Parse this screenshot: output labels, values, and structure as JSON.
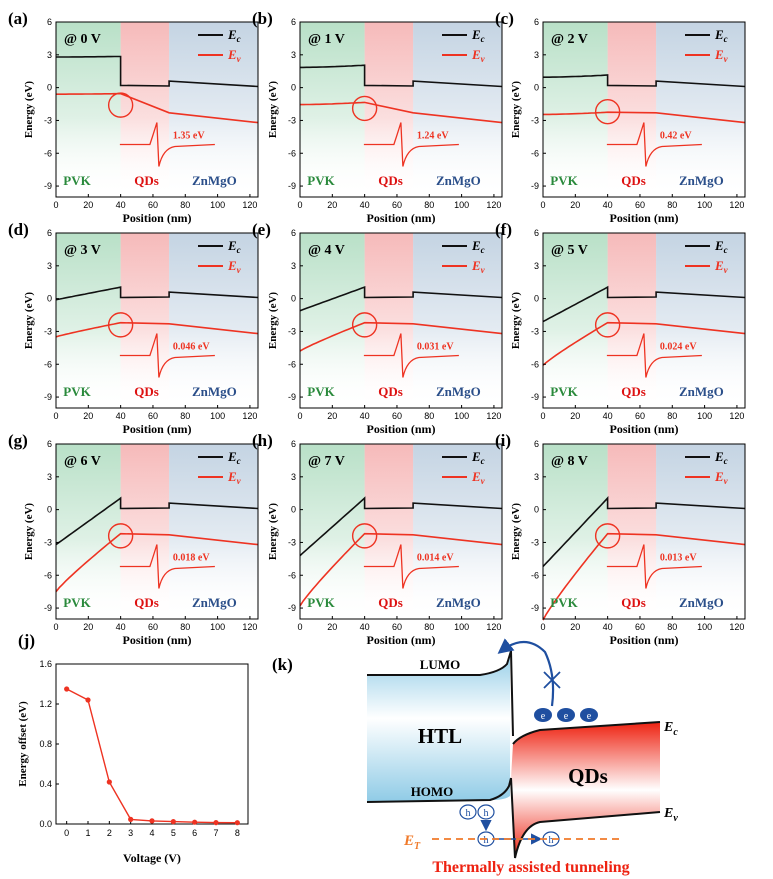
{
  "colors": {
    "ec": "#111111",
    "ev": "#ee3322",
    "pvk_fill": "#7fc79a",
    "qd_fill": "#f08c8c",
    "zn_fill": "#9db7d0",
    "pvk_text": "#2a8a3c",
    "qd_text": "#dd1111",
    "zn_text": "#2b4f8a",
    "htl_fill": "#a9d8ec",
    "qd_block": "#ee2211",
    "et_line": "#f07a2a",
    "arrow_blue": "#1f4fa0",
    "tunnel_text": "#ee2211"
  },
  "band_axes": {
    "xlabel": "Position (nm)",
    "ylabel": "Energy (eV)",
    "xlim": [
      0,
      125
    ],
    "ylim": [
      -10,
      6
    ],
    "xticks": [
      "0",
      "20",
      "40",
      "60",
      "80",
      "100",
      "120"
    ],
    "yticks": [
      "-9",
      "-6",
      "-3",
      "0",
      "3",
      "6"
    ],
    "regions": {
      "pvk": "PVK",
      "qds": "QDs",
      "znmgo": "ZnMgO"
    },
    "legend": {
      "ec_main": "E",
      "ec_sub": "c",
      "ev_main": "E",
      "ev_sub": "v"
    }
  },
  "panel_list": [
    {
      "letter": "(a)",
      "bias": "@ 0 V",
      "offset_label": "1.35 eV",
      "ec_left": 2.8
    },
    {
      "letter": "(b)",
      "bias": "@ 1 V",
      "offset_label": "1.24 eV",
      "ec_left": 1.85
    },
    {
      "letter": "(c)",
      "bias": "@ 2 V",
      "offset_label": "0.42 eV",
      "ec_left": 0.95
    },
    {
      "letter": "(d)",
      "bias": "@ 3 V",
      "offset_label": "0.046 eV",
      "ec_left": -0.1
    },
    {
      "letter": "(e)",
      "bias": "@ 4 V",
      "offset_label": "0.031 eV",
      "ec_left": -1.1
    },
    {
      "letter": "(f)",
      "bias": "@ 5 V",
      "offset_label": "0.024 eV",
      "ec_left": -2.1
    },
    {
      "letter": "(g)",
      "bias": "@ 6 V",
      "offset_label": "0.018 eV",
      "ec_left": -3.2
    },
    {
      "letter": "(h)",
      "bias": "@ 7 V",
      "offset_label": "0.014 eV",
      "ec_left": -4.2
    },
    {
      "letter": "(i)",
      "bias": "@ 8 V",
      "offset_label": "0.013 eV",
      "ec_left": -5.2
    }
  ],
  "chart_data": [
    {
      "type": "line",
      "title": "(j)",
      "xlabel": "Voltage (V)",
      "ylabel": "Energy offset (eV)",
      "x": [
        0,
        1,
        2,
        3,
        4,
        5,
        6,
        7,
        8
      ],
      "series": [
        {
          "values": [
            1.35,
            1.24,
            0.42,
            0.046,
            0.031,
            0.024,
            0.018,
            0.014,
            0.013
          ]
        }
      ],
      "xlim": [
        -0.5,
        8.5
      ],
      "ylim": [
        0,
        1.6
      ],
      "xticks": [
        "0",
        "1",
        "2",
        "3",
        "4",
        "5",
        "6",
        "7",
        "8"
      ],
      "yticks": [
        "0.0",
        "0.4",
        "0.8",
        "1.2",
        "1.6"
      ]
    }
  ],
  "diagram": {
    "letter": "(k)",
    "lumo": "LUMO",
    "homo": "HOMO",
    "htl": "HTL",
    "qds": "QDs",
    "ec_main": "E",
    "ec_sub": "c",
    "ev_main": "E",
    "ev_sub": "v",
    "et_main": "E",
    "et_sub": "T",
    "electron": "e",
    "hole": "h",
    "caption": "Thermally assisted tunneling"
  }
}
